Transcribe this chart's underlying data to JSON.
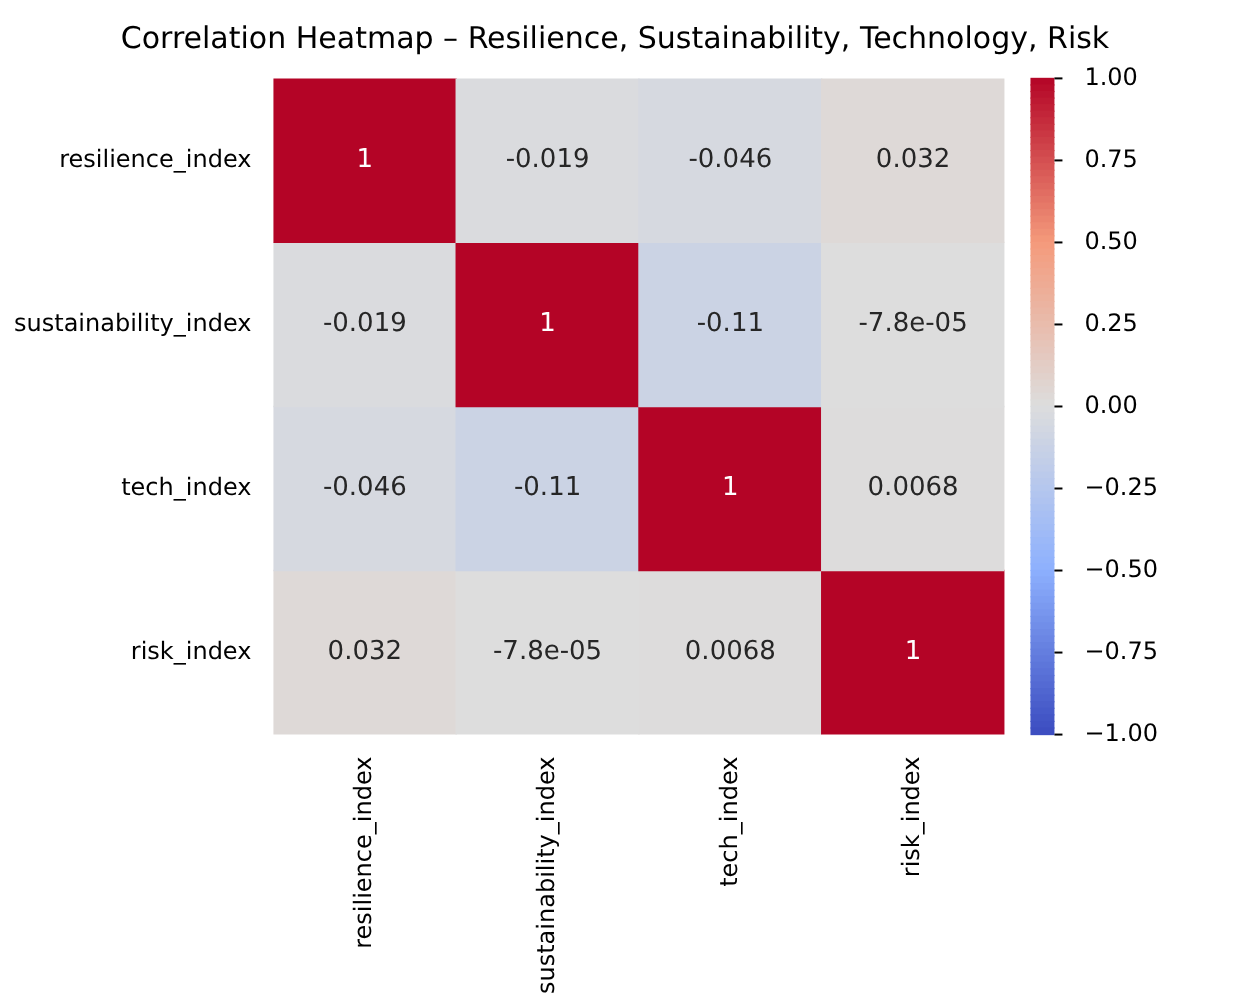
{
  "chart_data": {
    "type": "heatmap",
    "title": "Correlation Heatmap – Resilience, Sustainability, Technology, Risk",
    "categories": [
      "resilience_index",
      "sustainability_index",
      "tech_index",
      "risk_index"
    ],
    "y_categories": [
      "resilience_index",
      "sustainability_index",
      "tech_index",
      "risk_index"
    ],
    "cells": [
      [
        1,
        -0.019,
        -0.046,
        0.032
      ],
      [
        -0.019,
        1,
        -0.11,
        -7.8e-05
      ],
      [
        -0.046,
        -0.11,
        1,
        0.0068
      ],
      [
        0.032,
        -7.8e-05,
        0.0068,
        1
      ]
    ],
    "cell_labels": [
      [
        "1",
        "-0.019",
        "-0.046",
        "0.032"
      ],
      [
        "-0.019",
        "1",
        "-0.11",
        "-7.8e-05"
      ],
      [
        "-0.046",
        "-0.11",
        "1",
        "0.0068"
      ],
      [
        "0.032",
        "-7.8e-05",
        "0.0068",
        "1"
      ]
    ],
    "clim": [
      -1,
      1
    ],
    "cticks": [
      {
        "value": -1,
        "label": "−1.00"
      },
      {
        "value": -0.75,
        "label": "−0.75"
      },
      {
        "value": -0.5,
        "label": "−0.50"
      },
      {
        "value": -0.25,
        "label": "−0.25"
      },
      {
        "value": 0,
        "label": "0.00"
      },
      {
        "value": 0.25,
        "label": "0.25"
      },
      {
        "value": 0.5,
        "label": "0.50"
      },
      {
        "value": 0.75,
        "label": "0.75"
      },
      {
        "value": 1,
        "label": "1.00"
      }
    ]
  }
}
